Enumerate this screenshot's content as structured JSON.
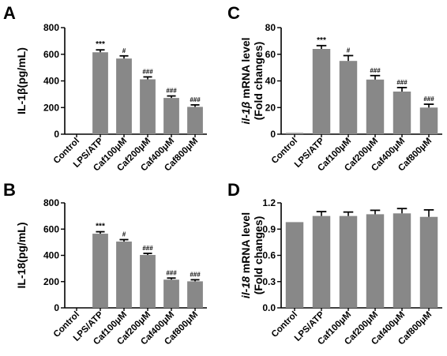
{
  "chart_data": [
    {
      "panel": "A",
      "type": "bar",
      "ylabel": "IL-1β(pg/mL)",
      "ylim": [
        0,
        800
      ],
      "yticks": [
        "0",
        "200",
        "400",
        "600",
        "800"
      ],
      "categories": [
        "Control",
        "LPS/ATP",
        "Caf100μM",
        "Caf200μM",
        "Caf400μM",
        "Caf800μM"
      ],
      "values": [
        0,
        615,
        568,
        412,
        272,
        205
      ],
      "errors": [
        0,
        18,
        20,
        18,
        15,
        15
      ],
      "annotations": [
        "",
        "***",
        "#",
        "###",
        "###",
        "###"
      ],
      "bar_color": "#888888"
    },
    {
      "panel": "B",
      "type": "bar",
      "ylabel": "IL-18(pg/mL)",
      "ylim": [
        0,
        800
      ],
      "yticks": [
        "0",
        "200",
        "400",
        "600",
        "800"
      ],
      "categories": [
        "Control",
        "LPS/ATP",
        "Caf100μM",
        "Caf200μM",
        "Caf400μM",
        "Caf800μM"
      ],
      "values": [
        0,
        565,
        505,
        403,
        215,
        202
      ],
      "errors": [
        0,
        15,
        15,
        12,
        12,
        12
      ],
      "annotations": [
        "",
        "***",
        "#",
        "###",
        "###",
        "###"
      ],
      "bar_color": "#888888"
    },
    {
      "panel": "C",
      "type": "bar",
      "ylabel_italic": "il-1β",
      "ylabel_rest": " mRNA level",
      "ylabel_line2": "(Fold changes)",
      "ylim": [
        0,
        80
      ],
      "yticks": [
        "0",
        "20",
        "40",
        "60",
        "80"
      ],
      "categories": [
        "Control",
        "LPS/ATP",
        "Caf100μM",
        "Caf200μM",
        "Caf400μM",
        "Caf800μM"
      ],
      "values": [
        1,
        64,
        55,
        41,
        32,
        20
      ],
      "errors": [
        0,
        2.5,
        4,
        3,
        3,
        2.5
      ],
      "annotations": [
        "",
        "***",
        "#",
        "###",
        "###",
        "###"
      ],
      "bar_color": "#888888"
    },
    {
      "panel": "D",
      "type": "bar",
      "ylabel_italic": "il-18",
      "ylabel_rest": " mRNA level",
      "ylabel_line2": "(Fold changes)",
      "ylim": [
        0,
        1.2
      ],
      "yticks": [
        "0.0",
        "0.3",
        "0.6",
        "0.9",
        "1.2"
      ],
      "categories": [
        "Control",
        "LPS/ATP",
        "Caf100μM",
        "Caf200μM",
        "Caf400μM",
        "Caf800μM"
      ],
      "values": [
        0.98,
        1.05,
        1.05,
        1.07,
        1.08,
        1.04
      ],
      "errors": [
        0,
        0.05,
        0.045,
        0.045,
        0.055,
        0.08
      ],
      "annotations": [
        "",
        "",
        "",
        "",
        "",
        ""
      ],
      "bar_color": "#888888"
    }
  ]
}
